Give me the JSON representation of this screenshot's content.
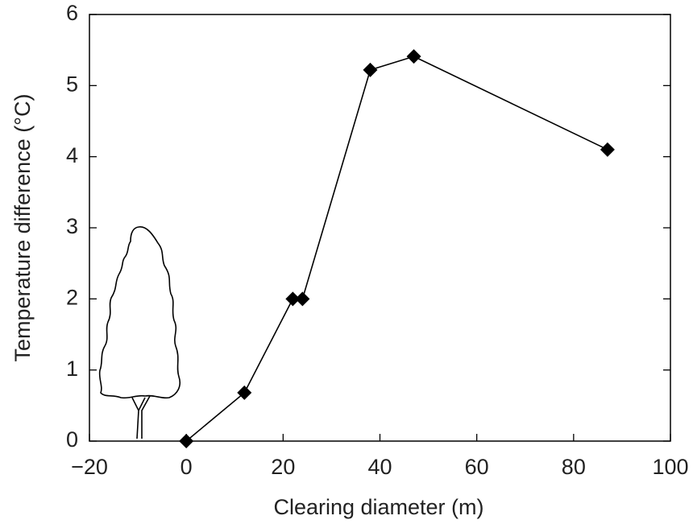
{
  "chart_data": {
    "type": "line",
    "xlabel": "Clearing diameter (m)",
    "ylabel": "Temperature difference (°C)",
    "x": [
      0,
      12,
      22,
      24,
      38,
      47,
      87
    ],
    "values": [
      0,
      0.68,
      2.0,
      2.0,
      5.22,
      5.41,
      4.1
    ],
    "color": "#000000",
    "marker": "diamond",
    "xlim": [
      -20,
      100
    ],
    "xticks": [
      {
        "value": -20,
        "label": "−20"
      },
      0,
      20,
      40,
      60,
      80,
      100
    ],
    "ylim": [
      0,
      6
    ],
    "yticks": [
      0,
      1,
      2,
      3,
      4,
      5,
      6
    ],
    "grid": false
  }
}
